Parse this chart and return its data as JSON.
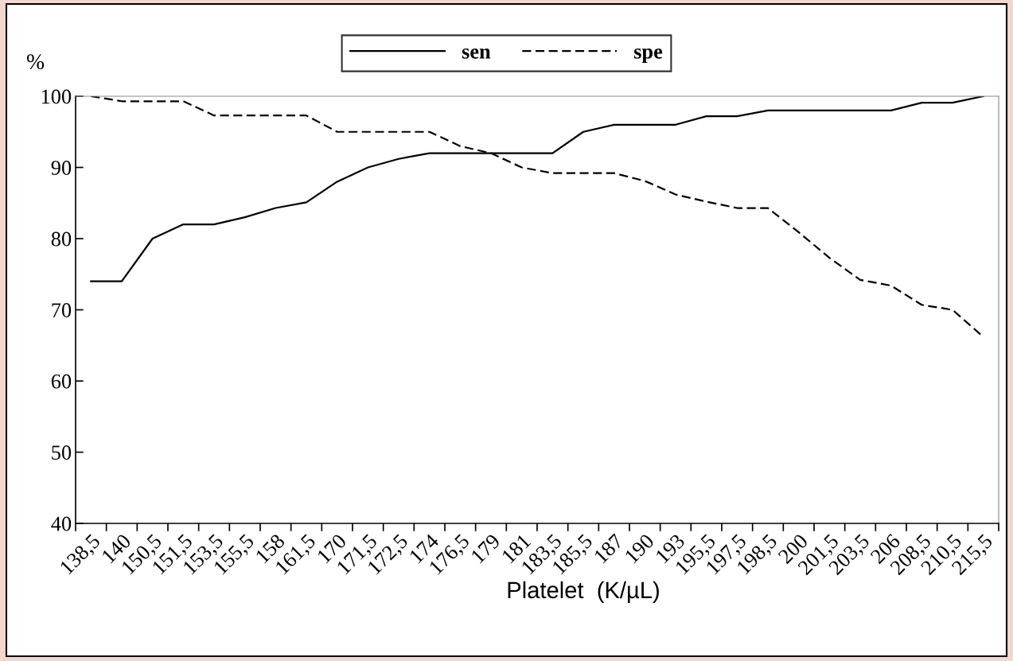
{
  "chart_data": {
    "type": "line",
    "xlabel": "Platelet  (K/µL)",
    "ylabel": "%",
    "categories": [
      "138,5",
      "140",
      "150,5",
      "151,5",
      "153,5",
      "155,5",
      "158",
      "161,5",
      "170",
      "171,5",
      "172,5",
      "174",
      "176,5",
      "179",
      "181",
      "183,5",
      "185,5",
      "187",
      "190",
      "193",
      "195,5",
      "197,5",
      "198,5",
      "200",
      "201,5",
      "203,5",
      "206",
      "208,5",
      "210,5",
      "215,5"
    ],
    "series": [
      {
        "name": "sen",
        "color": "#000000",
        "line_style": "solid",
        "values": [
          74,
          74,
          80,
          82,
          82,
          83,
          84.3,
          85.1,
          88,
          90,
          91.2,
          92,
          92,
          92,
          92,
          92,
          95,
          96,
          96,
          96,
          97.2,
          97.2,
          98,
          98,
          98,
          98,
          98,
          99.1,
          99.1,
          100
        ]
      },
      {
        "name": "spe",
        "color": "#000000",
        "line_style": "dashed",
        "values": [
          100,
          99.3,
          99.3,
          99.3,
          97.3,
          97.3,
          97.3,
          97.3,
          95,
          95,
          95,
          95,
          93,
          92,
          90,
          89.2,
          89.2,
          89.2,
          88.1,
          86.2,
          85.2,
          84.3,
          84.3,
          80.9,
          77.3,
          74.2,
          73.4,
          70.7,
          70,
          66.2
        ]
      }
    ],
    "ylim": [
      40,
      100
    ],
    "yticks": [
      40,
      50,
      60,
      70,
      80,
      90,
      100
    ],
    "grid": false,
    "legend": "top",
    "marker": "none"
  }
}
